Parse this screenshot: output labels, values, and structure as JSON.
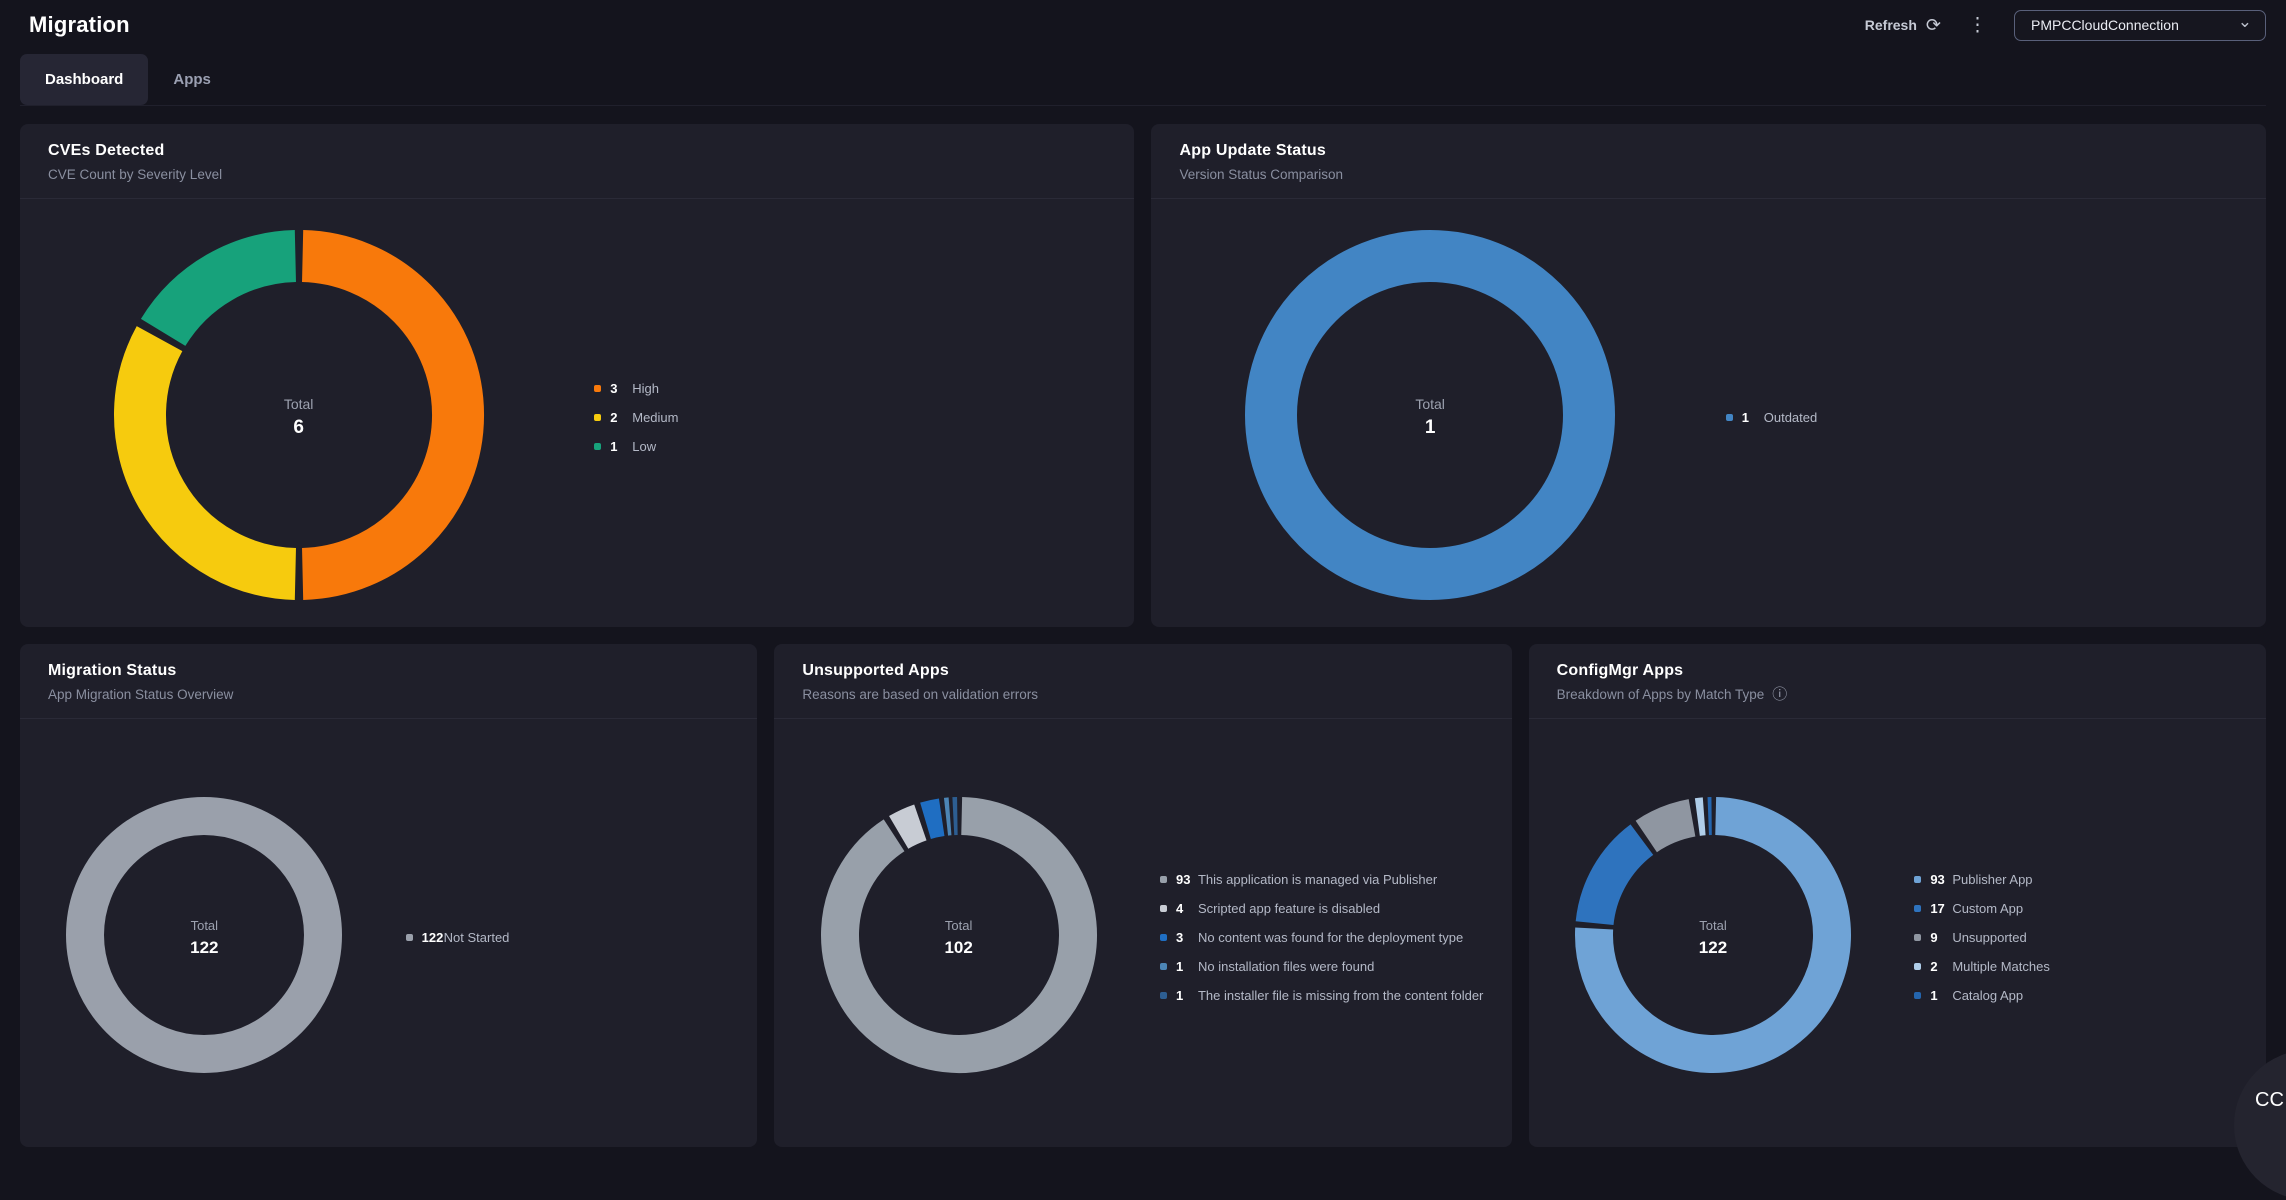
{
  "header": {
    "title": "Migration",
    "refresh_label": "Refresh",
    "connection_dropdown_value": "PMPCCloudConnection"
  },
  "tabs": [
    {
      "label": "Dashboard",
      "active": true
    },
    {
      "label": "Apps",
      "active": false
    }
  ],
  "icons": {
    "refresh": "⟳",
    "kebab": "⋮",
    "chevron_down": "⌄",
    "info": "ⓘ"
  },
  "floating_button": {
    "label": "CC"
  },
  "colors": {
    "page_background": "#14141D",
    "card_background": "#1F1F2A",
    "high": "#F8790B",
    "medium": "#F6CB0E",
    "low": "#17A27B",
    "outdated_blue": "#4285C4",
    "neutral_gray": "#9AA0AB"
  },
  "chart_data": [
    {
      "type": "donut",
      "title": "CVEs Detected",
      "subtitle": "CVE Count by Severity Level",
      "center_label": "Total",
      "total": 6,
      "legend_position": "right",
      "segments": [
        {
          "label": "High",
          "value": 3,
          "color": "#F8790B"
        },
        {
          "label": "Medium",
          "value": 2,
          "color": "#F6CB0E"
        },
        {
          "label": "Low",
          "value": 1,
          "color": "#17A27B"
        }
      ]
    },
    {
      "type": "donut",
      "title": "App Update Status",
      "subtitle": "Version Status Comparison",
      "center_label": "Total",
      "total": 1,
      "legend_position": "right",
      "segments": [
        {
          "label": "Outdated",
          "value": 1,
          "color": "#4285C4"
        }
      ]
    },
    {
      "type": "donut",
      "title": "Migration Status",
      "subtitle": "App Migration Status Overview",
      "center_label": "Total",
      "total": 122,
      "legend_position": "right",
      "segments": [
        {
          "label": "Not Started",
          "value": 122,
          "color": "#9AA0AB"
        }
      ]
    },
    {
      "type": "donut",
      "title": "Unsupported Apps",
      "subtitle": "Reasons are based on validation errors",
      "center_label": "Total",
      "total": 102,
      "legend_position": "right",
      "segments": [
        {
          "label": "This application is managed via Publisher",
          "value": 93,
          "color": "#98A0AA"
        },
        {
          "label": "Scripted app feature is disabled",
          "value": 4,
          "color": "#C8CCD4"
        },
        {
          "label": "No content was found for the deployment type",
          "value": 3,
          "color": "#1F6EC2"
        },
        {
          "label": "No installation files were found",
          "value": 1,
          "color": "#4C85B5"
        },
        {
          "label": "The installer file is missing from the content folder",
          "value": 1,
          "color": "#2D5E92"
        }
      ]
    },
    {
      "type": "donut",
      "title": "ConfigMgr Apps",
      "subtitle": "Breakdown of Apps by Match Type",
      "center_label": "Total",
      "total": 122,
      "legend_position": "right",
      "segments": [
        {
          "label": "Publisher App",
          "value": 93,
          "color": "#6FA3D6"
        },
        {
          "label": "Custom App",
          "value": 17,
          "color": "#2E73BE"
        },
        {
          "label": "Unsupported",
          "value": 9,
          "color": "#8F96A1"
        },
        {
          "label": "Multiple Matches",
          "value": 2,
          "color": "#AFCDE9"
        },
        {
          "label": "Catalog App",
          "value": 1,
          "color": "#2465AE"
        }
      ]
    }
  ]
}
